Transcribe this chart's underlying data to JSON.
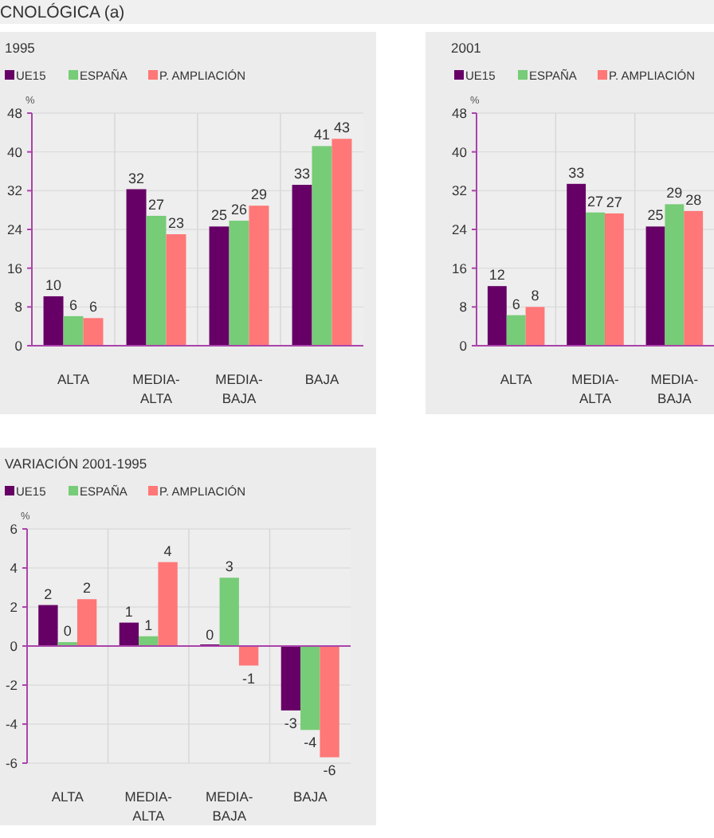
{
  "chart_data": [
    {
      "type": "bar",
      "title": "1995",
      "ylabel": "%",
      "annotations": [
        "CNOLÓGICA (a)"
      ],
      "categories": [
        "ALTA",
        "MEDIA-ALTA",
        "MEDIA-BAJA",
        "BAJA"
      ],
      "series": [
        {
          "name": "UE15",
          "color": "#660066",
          "values": [
            10.2,
            32.3,
            24.6,
            33.2
          ],
          "value_labels": [
            "10",
            "32",
            "25",
            "33"
          ]
        },
        {
          "name": "ESPAÑA",
          "color": "#77cc77",
          "values": [
            6.1,
            26.8,
            25.8,
            41.2
          ],
          "value_labels": [
            "6",
            "27",
            "26",
            "41"
          ]
        },
        {
          "name": "P. AMPLIACIÓN",
          "color": "#ff7777",
          "values": [
            5.7,
            23.0,
            28.9,
            42.7
          ],
          "value_labels": [
            "6",
            "23",
            "29",
            "43"
          ]
        }
      ],
      "ylim": [
        0,
        48
      ],
      "yticks": [
        0,
        8,
        16,
        24,
        32,
        40,
        48
      ],
      "grid": true,
      "legend": "top left"
    },
    {
      "type": "bar",
      "title": "2001",
      "ylabel": "%",
      "categories": [
        "ALTA",
        "MEDIA-ALTA",
        "MEDIA-BAJA"
      ],
      "series": [
        {
          "name": "UE15",
          "color": "#660066",
          "values": [
            12.3,
            33.4,
            24.6
          ],
          "value_labels": [
            "12",
            "33",
            "25"
          ]
        },
        {
          "name": "ESPAÑA",
          "color": "#77cc77",
          "values": [
            6.3,
            27.5,
            29.2
          ],
          "value_labels": [
            "6",
            "27",
            "29"
          ]
        },
        {
          "name": "P. AMPLIACIÓN",
          "color": "#ff7777",
          "values": [
            8.0,
            27.3,
            27.8
          ],
          "value_labels": [
            "8",
            "27",
            "28"
          ]
        }
      ],
      "ylim": [
        0,
        48
      ],
      "yticks": [
        0,
        8,
        16,
        24,
        32,
        40,
        48
      ],
      "grid": true,
      "legend": "top left"
    },
    {
      "type": "bar",
      "title": "VARIACIÓN  2001-1995",
      "ylabel": "%",
      "categories": [
        "ALTA",
        "MEDIA-ALTA",
        "MEDIA-BAJA",
        "BAJA"
      ],
      "series": [
        {
          "name": "UE15",
          "color": "#660066",
          "values": [
            2.1,
            1.2,
            0,
            -3.3
          ],
          "value_labels": [
            "2",
            "1",
            "0",
            "-3"
          ]
        },
        {
          "name": "ESPAÑA",
          "color": "#77cc77",
          "values": [
            0.2,
            0.5,
            3.5,
            -4.3
          ],
          "value_labels": [
            "0",
            "1",
            "3",
            "-4"
          ]
        },
        {
          "name": "P. AMPLIACIÓN",
          "color": "#ff7777",
          "values": [
            2.4,
            4.3,
            -1.0,
            -5.7
          ],
          "value_labels": [
            "2",
            "4",
            "-1",
            "-6"
          ]
        }
      ],
      "ref_lines": [
        {
          "axis": "y",
          "value": 0
        }
      ],
      "ylim": [
        -6,
        6
      ],
      "yticks": [
        -6,
        -4,
        -2,
        0,
        2,
        4,
        6
      ],
      "grid": true,
      "legend": "top left"
    }
  ]
}
